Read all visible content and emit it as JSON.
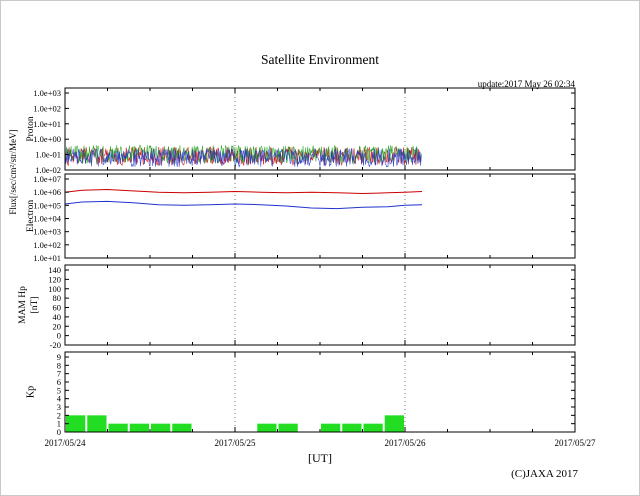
{
  "page": {
    "title": "Satellite Environment",
    "update_text": "update:2017 May 26 02:34",
    "xlabel": "[UT]",
    "copyright": "(C)JAXA 2017",
    "shared_ylabel": "Flux[/sec/cm²/str/MeV]"
  },
  "x_axis": {
    "tick_labels": [
      "2017/05/24",
      "2017/05/25",
      "2017/05/26",
      "2017/05/27"
    ],
    "range_days": [
      0,
      3
    ],
    "gridline_days": [
      1,
      2
    ]
  },
  "chart_data": [
    {
      "type": "line",
      "panel": "proton",
      "ylabel": "Proton",
      "yscale": "log10",
      "ylim": [
        -2,
        3
      ],
      "yticks": {
        "values": [
          3,
          2,
          1,
          0,
          -1,
          -2
        ],
        "labels": [
          "1.0e+03",
          "1.0e+02",
          "1.0e+01",
          "1.0e+00",
          "1.0e-01",
          "1.0e-02"
        ]
      },
      "series": [
        {
          "name": "proton-red",
          "color": "#cc0000",
          "style": "noise",
          "x_range_days": [
            0,
            2.1
          ],
          "log10_band": [
            -1.7,
            -0.5
          ],
          "seed": 11
        },
        {
          "name": "proton-green",
          "color": "#18a018",
          "style": "noise",
          "x_range_days": [
            0,
            2.1
          ],
          "log10_band": [
            -1.6,
            -0.38
          ],
          "seed": 22
        },
        {
          "name": "proton-blue",
          "color": "#2233cc",
          "style": "noise",
          "x_range_days": [
            0,
            2.1
          ],
          "log10_band": [
            -1.8,
            -0.6
          ],
          "seed": 33
        }
      ]
    },
    {
      "type": "line",
      "panel": "electron",
      "ylabel": "Electron",
      "yscale": "log10",
      "ylim": [
        1,
        7
      ],
      "yticks": {
        "values": [
          7,
          6,
          5,
          4,
          3,
          2,
          1
        ],
        "labels": [
          "1.0e+07",
          "1.0e+06",
          "1.0e+05",
          "1.0e+04",
          "1.0e+03",
          "1.0e+02",
          "1.0e+01"
        ]
      },
      "series": [
        {
          "name": "electron-red",
          "color": "#cc0000",
          "style": "line",
          "x_days": [
            0,
            0.1,
            0.25,
            0.4,
            0.55,
            0.7,
            0.85,
            1.0,
            1.15,
            1.3,
            1.45,
            1.6,
            1.75,
            1.9,
            2.0,
            2.1
          ],
          "log10": [
            6.0,
            6.15,
            6.2,
            6.1,
            6.0,
            5.95,
            6.0,
            6.05,
            6.0,
            5.95,
            6.0,
            5.95,
            5.9,
            5.95,
            6.0,
            6.05
          ]
        },
        {
          "name": "electron-blue",
          "color": "#2233cc",
          "style": "line",
          "x_days": [
            0,
            0.1,
            0.25,
            0.4,
            0.55,
            0.7,
            0.85,
            1.0,
            1.15,
            1.3,
            1.45,
            1.6,
            1.75,
            1.9,
            2.0,
            2.1
          ],
          "log10": [
            5.1,
            5.25,
            5.3,
            5.2,
            5.05,
            5.0,
            5.05,
            5.1,
            5.05,
            4.95,
            4.8,
            4.75,
            4.85,
            4.9,
            5.0,
            5.05
          ]
        }
      ]
    },
    {
      "type": "line",
      "panel": "mam",
      "ylabel": "MAM Hp",
      "ylabel2": "[nT]",
      "yscale": "linear",
      "ylim": [
        -20,
        140
      ],
      "yticks": {
        "values": [
          140,
          120,
          100,
          80,
          60,
          40,
          20,
          0,
          -20
        ],
        "labels": [
          "140",
          "120",
          "100",
          "80",
          "60",
          "40",
          "20",
          "0",
          "-20"
        ]
      },
      "series": []
    },
    {
      "type": "bar",
      "panel": "kp",
      "ylabel": "Kp",
      "yscale": "linear",
      "ylim": [
        0,
        9
      ],
      "yticks": {
        "values": [
          9,
          8,
          7,
          6,
          5,
          4,
          3,
          2,
          1,
          0
        ],
        "labels": [
          "9",
          "8",
          "7",
          "6",
          "5",
          "4",
          "3",
          "2",
          "1",
          "0"
        ]
      },
      "bar_color": "#22dd22",
      "interval_hours": 3,
      "values": [
        2,
        2,
        1,
        1,
        1,
        1,
        0,
        0,
        0,
        1,
        1,
        0,
        1,
        1,
        1,
        2
      ]
    }
  ]
}
